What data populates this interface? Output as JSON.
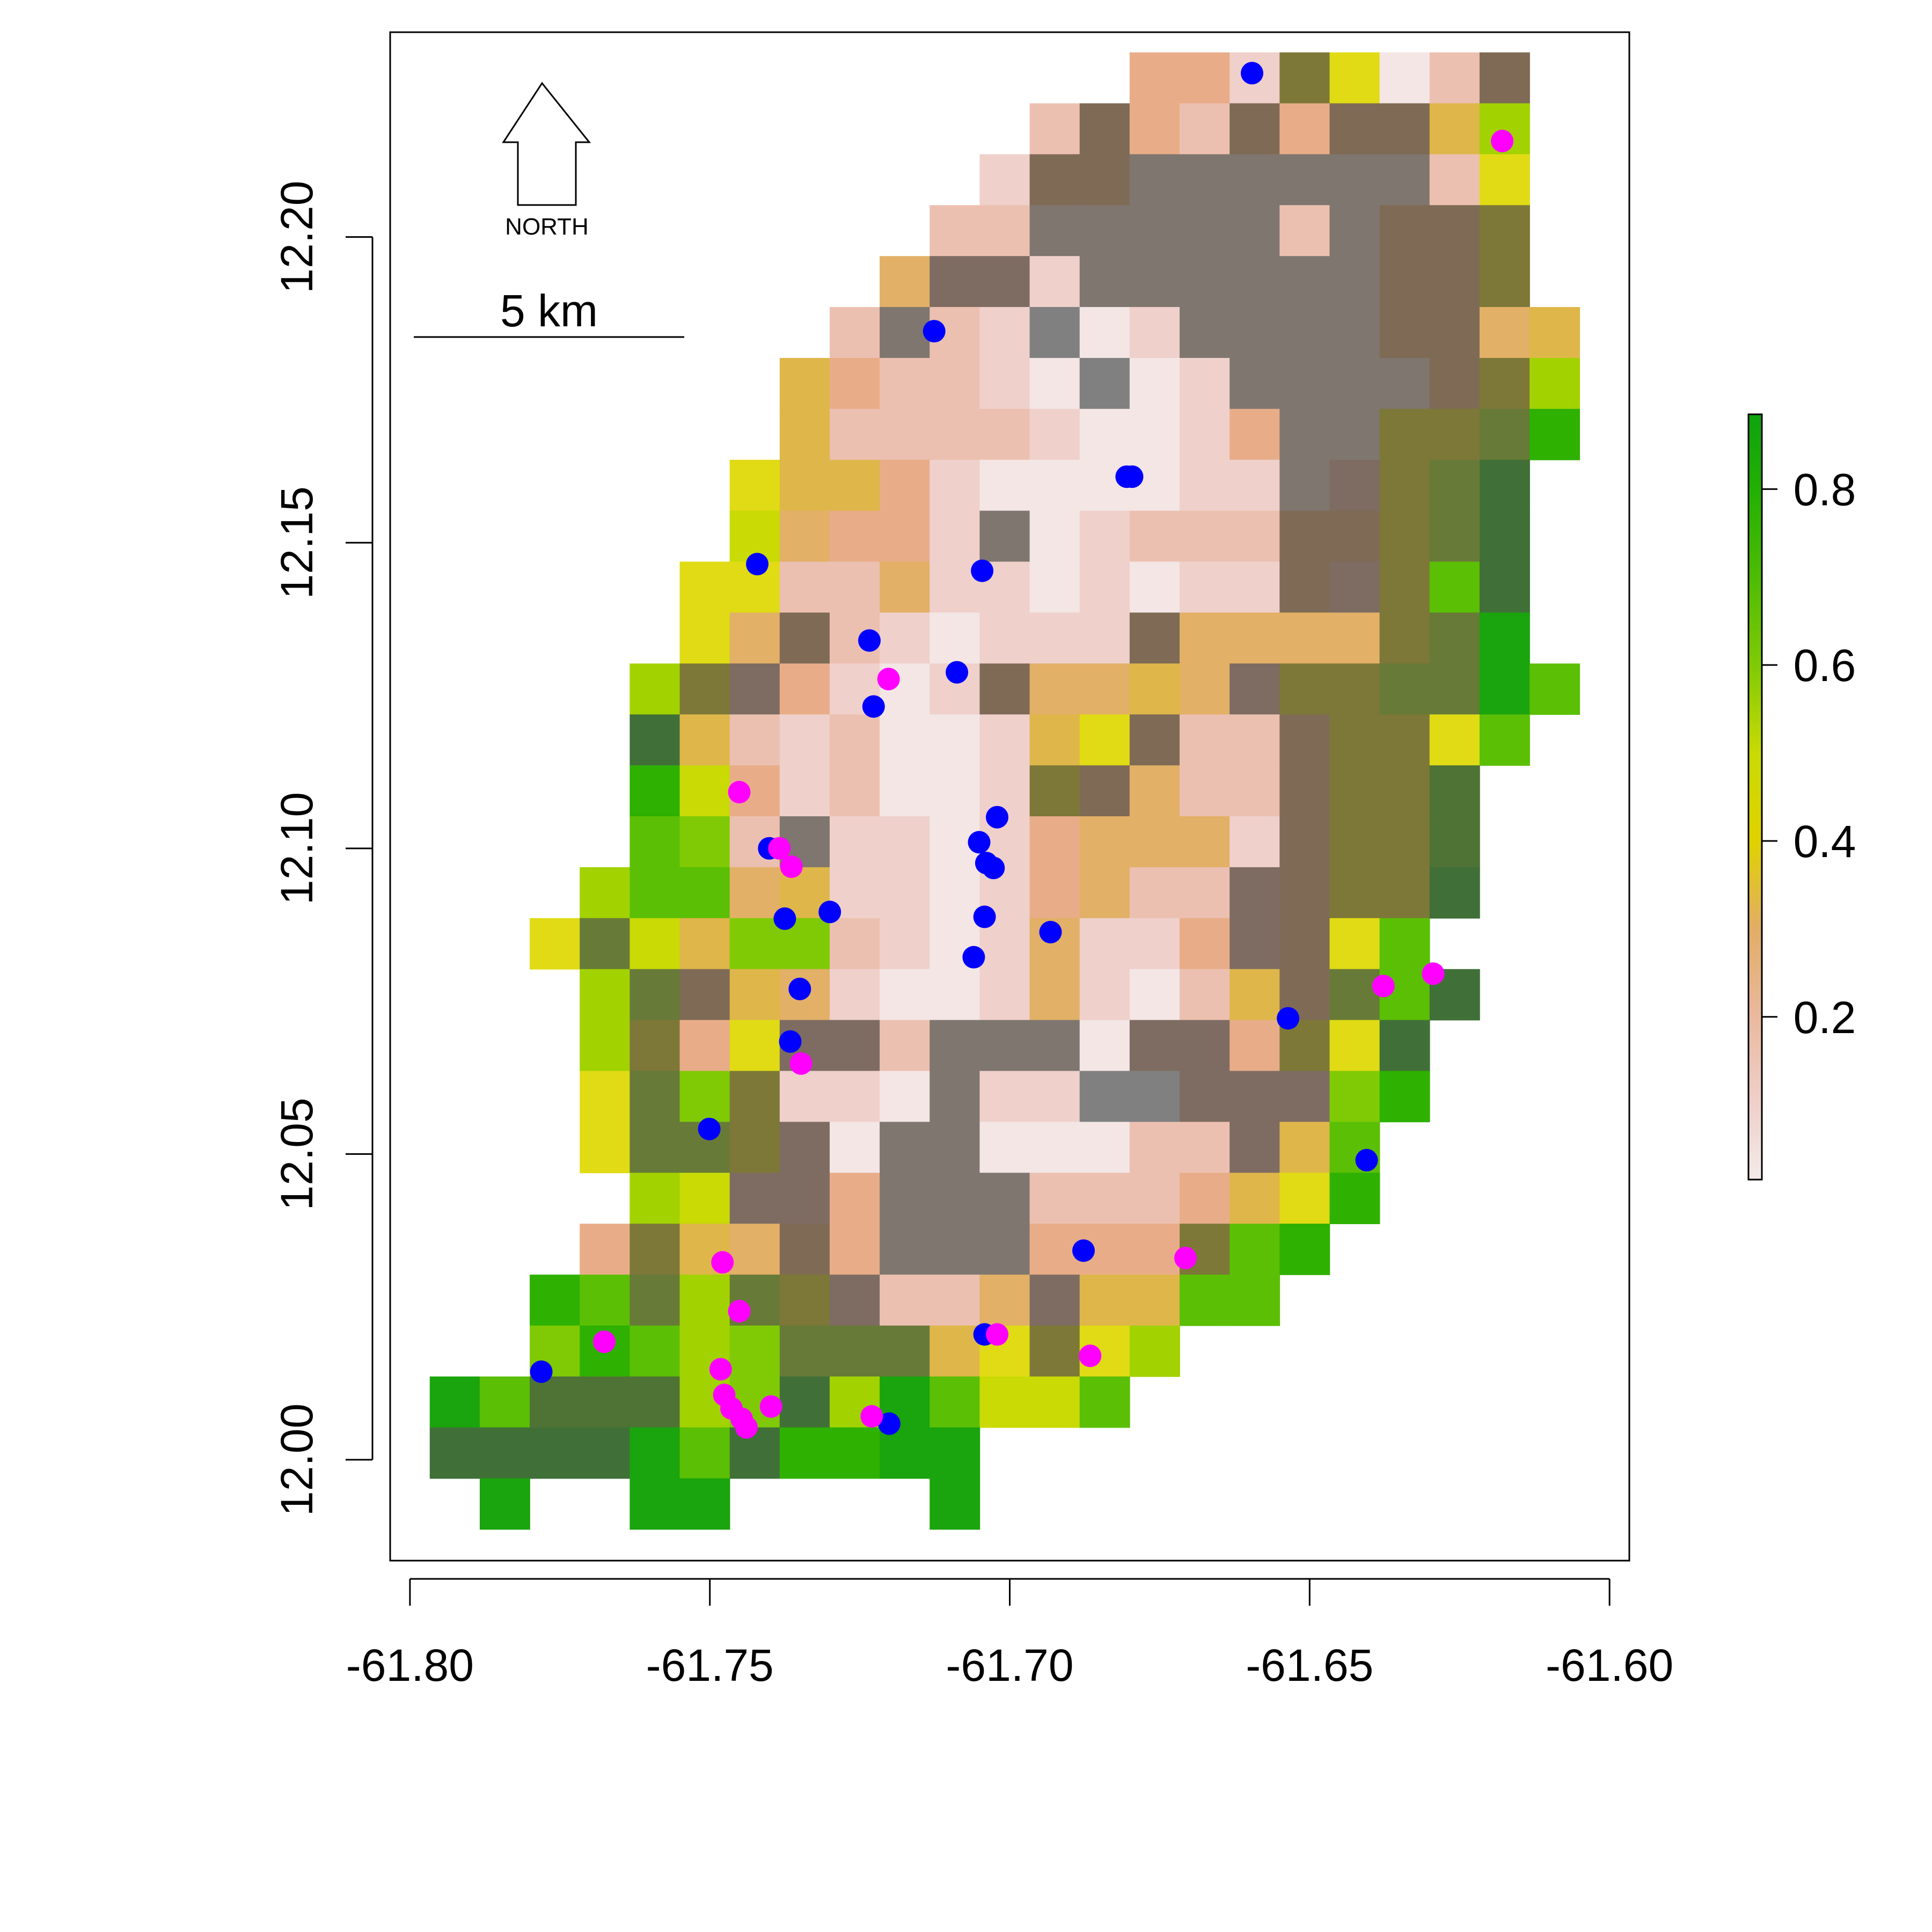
{
  "chart_data": {
    "type": "heatmap",
    "x_ticks": [
      "-61.80",
      "-61.75",
      "-61.70",
      "-61.65",
      "-61.60"
    ],
    "x_tick_values": [
      -61.8,
      -61.75,
      -61.7,
      -61.65,
      -61.6
    ],
    "y_ticks": [
      "12.00",
      "12.05",
      "12.10",
      "12.15",
      "12.20"
    ],
    "y_tick_values": [
      12.0,
      12.05,
      12.1,
      12.15,
      12.2
    ],
    "xlim": [
      -61.8033,
      -61.5967
    ],
    "ylim": [
      11.9835,
      12.2335
    ],
    "grid": false,
    "raster": {
      "xmin": -61.7967,
      "xmax": -61.605,
      "ymax": 12.2302,
      "cell": 0.00833,
      "cols": 23,
      "rows": 29,
      "colors": {
        "W": "#ffffff",
        "P": "#f3e6e5",
        "L": "#efd0cb",
        "S": "#ecc0b0",
        "T": "#e8ad88",
        "O": "#e2b066",
        "H": "#dfb64a",
        "Y": "#e0db14",
        "X": "#c9da05",
        "N": "#a2d200",
        "M": "#7fca05",
        "G": "#5bbf05",
        "E": "#2eb100",
        "D": "#1aa40d",
        "Q": "#407038",
        "R": "#4f7335",
        "V": "#687a38",
        "F": "#7d7838",
        "A": "#7f6b55",
        "B": "#7e6c62",
        "C": "#7f766f",
        "K": "#808080"
      },
      "grid": [
        "WWWWWWWWWWWWWWTTLFYPSAW",
        "WWWWWWWWWWWWSATSATAAHNW",
        "WWWWWWWWWWWLAACCCCCCSYW",
        "WWWWWWWWWWSSCCCCCSCAAFW",
        "WWWWWWWWWOBBLCCCCCCAAFW",
        "WWWWWWWWSCSLKPLCCCCAAOH",
        "WWWWWWWHTSSLPKPLCCCCAFN",
        "WWWWWWWHSSSSLPPLTCCFFVE",
        "WWWWWWYHHTLPPPPLLCBFVQW",
        "WWWWWWXOTTLCPLSSSAAFVQW",
        "WWWWWYYSSOLLPLPLLABFGQW",
        "WWWWWYOASLPLLLAOOOOFVDW",
        "WWWWNFBTLPLAOOHOBFFVVDG",
        "WWWWQHSLSPPLHYASSAFFYGW",
        "WWWWEXTLSPPLFAOSSAFFRWW",
        "WWWWGMSCLLPLTOOOLAFFRWW",
        "WWWNGGOHLLPLTOSSBAFFQWW",
        "WWYVXHMMSLPLOLLTBAYGWWW",
        "WWWNVAHOLPPLOLPSHAVGQWW",
        "WWWNFTYBBSCCCPBBTFYQWWW",
        "WWWYVMFLLPCLLKKBBBMEWWW",
        "WWWYVVFBPCCPPPSSBHGWWWW",
        "WWWWNXBBTCCCSSSTHYEWWWW",
        "WWWTFHOATCCCTTTFGEWWWWW",
        "WWEGVNVFBSSOBHHGGWWWWWW",
        "WWMEGNMVVVHYFYNWWWWWWWW",
        "DGRRRNMQNDGXXGWWWWWWWWW",
        "QQQQDGQEEDDWWWWWWWWWWWW",
        "WDWWDDWWWWDWWWWWWWWWWWW"
      ]
    },
    "series": [
      {
        "name": "",
        "color": "#0000ff",
        "points": [
          [
            -61.6596,
            12.2268
          ],
          [
            -61.7126,
            12.1846
          ],
          [
            -61.6796,
            12.1608
          ],
          [
            -61.6805,
            12.1608
          ],
          [
            -61.7421,
            12.1465
          ],
          [
            -61.7046,
            12.1454
          ],
          [
            -61.7234,
            12.134
          ],
          [
            -61.7088,
            12.1288
          ],
          [
            -61.7227,
            12.1232
          ],
          [
            -61.7021,
            12.1051
          ],
          [
            -61.7401,
            12.1
          ],
          [
            -61.7051,
            12.101
          ],
          [
            -61.7039,
            12.0976
          ],
          [
            -61.7027,
            12.0968
          ],
          [
            -61.7375,
            12.0885
          ],
          [
            -61.73,
            12.0896
          ],
          [
            -61.7042,
            12.0888
          ],
          [
            -61.6932,
            12.0863
          ],
          [
            -61.706,
            12.0822
          ],
          [
            -61.735,
            12.077
          ],
          [
            -61.6536,
            12.0722
          ],
          [
            -61.7366,
            12.0684
          ],
          [
            -61.7501,
            12.0541
          ],
          [
            -61.6405,
            12.049
          ],
          [
            -61.6877,
            12.0342
          ],
          [
            -61.7042,
            12.0205
          ],
          [
            -61.7781,
            12.0144
          ],
          [
            -61.7201,
            12.0059
          ]
        ]
      },
      {
        "name": "",
        "color": "#ff00ff",
        "points": [
          [
            -61.6179,
            12.2157
          ],
          [
            -61.7202,
            12.1277
          ],
          [
            -61.7451,
            12.1092
          ],
          [
            -61.7384,
            12.1
          ],
          [
            -61.7364,
            12.097
          ],
          [
            -61.6377,
            12.0775
          ],
          [
            -61.6294,
            12.0795
          ],
          [
            -61.7348,
            12.0648
          ],
          [
            -61.7479,
            12.0323
          ],
          [
            -61.7451,
            12.0243
          ],
          [
            -61.6707,
            12.033
          ],
          [
            -61.7021,
            12.0205
          ],
          [
            -61.7676,
            12.0193
          ],
          [
            -61.6866,
            12.017
          ],
          [
            -61.7482,
            12.0148
          ],
          [
            -61.7476,
            12.0106
          ],
          [
            -61.7464,
            12.0084
          ],
          [
            -61.7398,
            12.0087
          ],
          [
            -61.7447,
            12.0067
          ],
          [
            -61.7439,
            12.0053
          ],
          [
            -61.723,
            12.0071
          ]
        ]
      }
    ],
    "colorbar": {
      "ticks": [
        "0.2",
        "0.4",
        "0.6",
        "0.8"
      ],
      "tick_values": [
        0.2,
        0.4,
        0.6,
        0.8
      ],
      "range": [
        0.015,
        0.885
      ],
      "stops": [
        {
          "v": 0.015,
          "c": "#f3ebe9"
        },
        {
          "v": 0.1,
          "c": "#efd0cb"
        },
        {
          "v": 0.2,
          "c": "#eab99f"
        },
        {
          "v": 0.3,
          "c": "#e2ad66"
        },
        {
          "v": 0.4,
          "c": "#e0d200"
        },
        {
          "v": 0.5,
          "c": "#c9da05"
        },
        {
          "v": 0.6,
          "c": "#7fca05"
        },
        {
          "v": 0.7,
          "c": "#4dbc05"
        },
        {
          "v": 0.8,
          "c": "#22b004"
        },
        {
          "v": 0.885,
          "c": "#0ea30e"
        }
      ]
    },
    "north_label": "NORTH",
    "scale_label": "5 km"
  }
}
